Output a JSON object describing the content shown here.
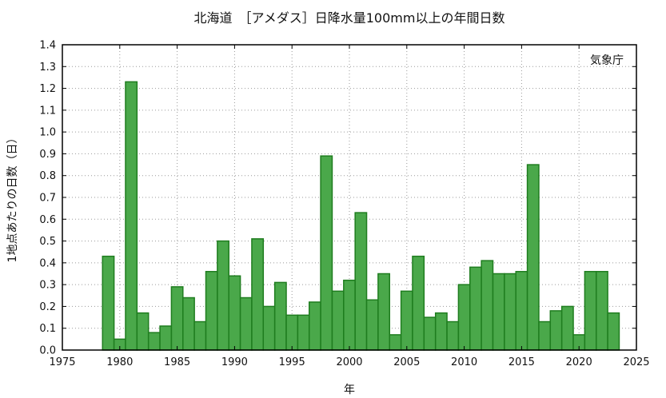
{
  "chart_data": {
    "type": "bar",
    "title": "北海道　［アメダス］日降水量100mm以上の年間日数",
    "xlabel": "年",
    "ylabel": "1地点あたりの日数（日）",
    "credit": "気象庁",
    "xlim": [
      1975,
      2025
    ],
    "ylim": [
      0,
      1.4
    ],
    "xticks": [
      1975,
      1980,
      1985,
      1990,
      1995,
      2000,
      2005,
      2010,
      2015,
      2020,
      2025
    ],
    "yticks": [
      0.0,
      0.1,
      0.2,
      0.3,
      0.4,
      0.5,
      0.6,
      0.7,
      0.8,
      0.9,
      1.0,
      1.1,
      1.2,
      1.3,
      1.4
    ],
    "grid": true,
    "colors": {
      "bar_fill": "#4aa84a",
      "bar_edge": "#1f7d1f"
    },
    "categories": [
      1979,
      1980,
      1981,
      1982,
      1983,
      1984,
      1985,
      1986,
      1987,
      1988,
      1989,
      1990,
      1991,
      1992,
      1993,
      1994,
      1995,
      1996,
      1997,
      1998,
      1999,
      2000,
      2001,
      2002,
      2003,
      2004,
      2005,
      2006,
      2007,
      2008,
      2009,
      2010,
      2011,
      2012,
      2013,
      2014,
      2015,
      2016,
      2017,
      2018,
      2019,
      2020,
      2021,
      2022,
      2023
    ],
    "values": [
      0.43,
      0.05,
      1.23,
      0.17,
      0.08,
      0.11,
      0.29,
      0.24,
      0.13,
      0.36,
      0.5,
      0.34,
      0.24,
      0.51,
      0.2,
      0.31,
      0.16,
      0.16,
      0.22,
      0.89,
      0.27,
      0.32,
      0.63,
      0.23,
      0.35,
      0.07,
      0.27,
      0.43,
      0.15,
      0.17,
      0.13,
      0.3,
      0.38,
      0.41,
      0.35,
      0.35,
      0.36,
      0.85,
      0.13,
      0.18,
      0.2,
      0.07,
      0.36,
      0.36,
      0.17
    ]
  }
}
